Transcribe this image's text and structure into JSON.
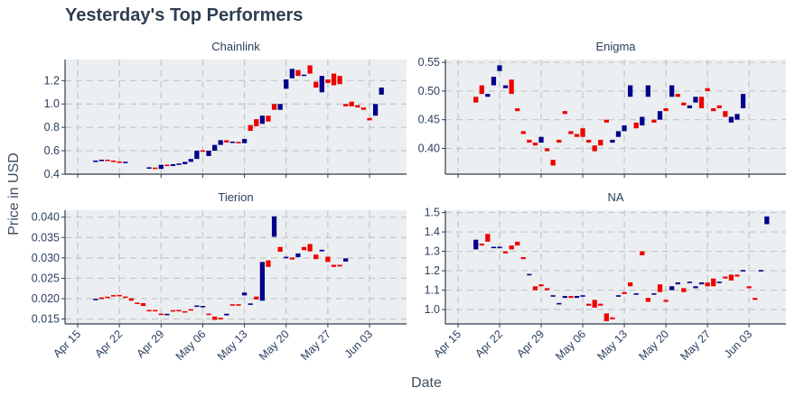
{
  "title": "Yesterday's Top Performers",
  "xlabel": "Date",
  "ylabel": "Price in USD",
  "colors": {
    "up": "#00008b",
    "down": "#ee0000",
    "plot_bg": "#eceff1",
    "grid": "#c3c6c9",
    "axis": "#2f3e50"
  },
  "chart_data": [
    {
      "type": "candlestick",
      "title": "Chainlink",
      "ylim": [
        0.4,
        1.38
      ],
      "yticks": [
        "0.4",
        "0.6",
        "0.8",
        "1.0",
        "1.2"
      ],
      "xticks": [
        "Apr 15",
        "Apr 22",
        "Apr 29",
        "May 06",
        "May 13",
        "May 20",
        "May 27",
        "Jun 03"
      ],
      "start_date": "2018-04-18",
      "candles": [
        [
          0.505,
          0.515
        ],
        [
          0.515,
          0.52
        ],
        [
          0.52,
          0.515
        ],
        [
          0.515,
          0.505
        ],
        [
          0.505,
          0.5
        ],
        [
          0.5,
          0.5
        ],
        null,
        null,
        null,
        [
          0.45,
          0.455
        ],
        [
          0.455,
          0.445
        ],
        [
          0.445,
          0.48
        ],
        [
          0.48,
          0.47
        ],
        [
          0.47,
          0.485
        ],
        [
          0.485,
          0.485
        ],
        [
          0.485,
          0.505
        ],
        [
          0.505,
          0.53
        ],
        [
          0.53,
          0.6
        ],
        [
          0.6,
          0.595
        ],
        [
          0.555,
          0.6
        ],
        [
          0.6,
          0.65
        ],
        [
          0.65,
          0.69
        ],
        [
          0.69,
          0.67
        ],
        [
          0.67,
          0.675
        ],
        [
          0.675,
          0.665
        ],
        [
          0.665,
          0.7
        ],
        [
          0.82,
          0.77
        ],
        [
          0.87,
          0.81
        ],
        [
          0.83,
          0.9
        ],
        [
          0.9,
          0.85
        ],
        [
          1.0,
          0.95
        ],
        [
          0.95,
          1.0
        ],
        [
          1.13,
          1.21
        ],
        [
          1.22,
          1.3
        ],
        [
          1.29,
          1.24
        ],
        [
          1.24,
          1.25
        ],
        [
          1.33,
          1.26
        ],
        [
          1.19,
          1.14
        ],
        [
          1.1,
          1.24
        ],
        [
          1.21,
          1.18
        ],
        [
          1.26,
          1.16
        ],
        [
          1.24,
          1.17
        ],
        [
          1.0,
          0.98
        ],
        [
          1.02,
          0.98
        ],
        [
          0.99,
          0.97
        ],
        [
          0.97,
          0.95
        ],
        [
          0.88,
          0.86
        ],
        [
          0.9,
          1.0
        ],
        [
          1.08,
          1.14
        ]
      ]
    },
    {
      "type": "candlestick",
      "title": "Enigma",
      "ylim": [
        0.355,
        0.555
      ],
      "yticks": [
        "0.40",
        "0.45",
        "0.50",
        "0.55"
      ],
      "xticks": [
        "Apr 15",
        "Apr 22",
        "Apr 29",
        "May 06",
        "May 13",
        "May 20",
        "May 27",
        "Jun 03"
      ],
      "start_date": "2018-04-18",
      "candles": [
        [
          0.49,
          0.48
        ],
        [
          0.51,
          0.495
        ],
        [
          0.49,
          0.495
        ],
        [
          0.51,
          0.525
        ],
        [
          0.535,
          0.545
        ],
        [
          0.505,
          0.51
        ],
        [
          0.52,
          0.495
        ],
        [
          0.47,
          0.465
        ],
        [
          0.43,
          0.425
        ],
        [
          0.415,
          0.41
        ],
        [
          0.41,
          0.405
        ],
        [
          0.41,
          0.42
        ],
        [
          0.4,
          0.395
        ],
        [
          0.38,
          0.37
        ],
        [
          0.415,
          0.41
        ],
        [
          0.465,
          0.46
        ],
        [
          0.43,
          0.425
        ],
        [
          0.425,
          0.42
        ],
        [
          0.435,
          0.42
        ],
        [
          0.415,
          0.41
        ],
        [
          0.405,
          0.395
        ],
        [
          0.415,
          0.405
        ],
        [
          0.45,
          0.445
        ],
        [
          0.41,
          0.415
        ],
        [
          0.42,
          0.43
        ],
        [
          0.43,
          0.44
        ],
        [
          0.49,
          0.51
        ],
        [
          0.445,
          0.435
        ],
        [
          0.44,
          0.455
        ],
        [
          0.49,
          0.51
        ],
        [
          0.45,
          0.445
        ],
        [
          0.45,
          0.465
        ],
        [
          0.47,
          0.465
        ],
        [
          0.49,
          0.51
        ],
        [
          0.495,
          0.49
        ],
        [
          0.48,
          0.475
        ],
        [
          0.47,
          0.475
        ],
        [
          0.48,
          0.49
        ],
        [
          0.49,
          0.47
        ],
        [
          0.505,
          0.5
        ],
        [
          0.47,
          0.465
        ],
        [
          0.475,
          0.47
        ],
        [
          0.465,
          0.455
        ],
        [
          0.445,
          0.455
        ],
        [
          0.45,
          0.46
        ],
        [
          0.47,
          0.495
        ]
      ]
    },
    {
      "type": "candlestick",
      "title": "Tierion",
      "ylim": [
        0.0138,
        0.0417
      ],
      "yticks": [
        "0.015",
        "0.020",
        "0.025",
        "0.030",
        "0.035",
        "0.040"
      ],
      "xticks": [
        "Apr 15",
        "Apr 22",
        "Apr 29",
        "May 06",
        "May 13",
        "May 20",
        "May 27",
        "Jun 03"
      ],
      "start_date": "2018-04-18",
      "candles": [
        [
          0.0198,
          0.0198
        ],
        [
          0.0203,
          0.0199
        ],
        [
          0.0204,
          0.0202
        ],
        [
          0.0208,
          0.0206
        ],
        [
          0.0208,
          0.0207
        ],
        [
          0.0204,
          0.0203
        ],
        [
          0.0201,
          0.0195
        ],
        [
          0.0189,
          0.0188
        ],
        [
          0.0189,
          0.0182
        ],
        [
          0.0171,
          0.017
        ],
        [
          0.0171,
          0.017
        ],
        [
          0.0162,
          0.0161
        ],
        [
          0.0161,
          0.0161
        ],
        [
          0.0171,
          0.0169
        ],
        [
          0.0171,
          0.017
        ],
        [
          0.0168,
          0.0167
        ],
        [
          0.0174,
          0.0171
        ],
        [
          0.0181,
          0.0182
        ],
        [
          0.018,
          0.0181
        ],
        [
          0.0162,
          0.0161
        ],
        [
          0.0156,
          0.0148
        ],
        [
          0.0153,
          0.0149
        ],
        [
          0.0159,
          0.0163
        ],
        [
          0.0185,
          0.0184
        ],
        [
          0.0185,
          0.0184
        ],
        [
          0.0208,
          0.0215
        ],
        [
          0.0185,
          0.0188
        ],
        [
          0.0205,
          0.0198
        ],
        [
          0.0195,
          0.029
        ],
        [
          0.0294,
          0.0278
        ],
        [
          0.0352,
          0.0402
        ],
        [
          0.0327,
          0.0315
        ],
        [
          0.0301,
          0.0301
        ],
        [
          0.0301,
          0.0296
        ],
        [
          0.0302,
          0.0311
        ],
        [
          0.0327,
          0.0319
        ],
        [
          0.0334,
          0.0316
        ],
        [
          0.0308,
          0.0297
        ],
        [
          0.0316,
          0.032
        ],
        [
          0.0303,
          0.029
        ],
        [
          0.0283,
          0.0278
        ],
        [
          0.0283,
          0.0279
        ],
        [
          0.0291,
          0.0299
        ]
      ]
    },
    {
      "type": "candlestick",
      "title": "NA",
      "ylim": [
        0.926,
        1.512
      ],
      "yticks": [
        "1.0",
        "1.1",
        "1.2",
        "1.3",
        "1.4",
        "1.5"
      ],
      "xticks": [
        "Apr 15",
        "Apr 22",
        "Apr 29",
        "May 06",
        "May 13",
        "May 20",
        "May 27",
        "Jun 03"
      ],
      "start_date": "2018-04-18",
      "candles": [
        [
          1.31,
          1.36
        ],
        [
          1.34,
          1.33
        ],
        [
          1.39,
          1.35
        ],
        [
          1.32,
          1.32
        ],
        [
          1.32,
          1.32
        ],
        [
          1.3,
          1.29
        ],
        [
          1.33,
          1.31
        ],
        [
          1.35,
          1.33
        ],
        [
          1.27,
          1.26
        ],
        [
          1.18,
          1.18
        ],
        [
          1.12,
          1.1
        ],
        [
          1.13,
          1.12
        ],
        [
          1.11,
          1.1
        ],
        [
          1.07,
          1.07
        ],
        [
          1.03,
          1.03
        ],
        [
          1.06,
          1.07
        ],
        [
          1.07,
          1.06
        ],
        [
          1.06,
          1.07
        ],
        [
          1.07,
          1.07
        ],
        [
          1.03,
          1.02
        ],
        [
          1.05,
          1.01
        ],
        [
          1.03,
          1.02
        ],
        [
          0.98,
          0.94
        ],
        [
          0.96,
          0.95
        ],
        [
          1.07,
          1.07
        ],
        [
          1.09,
          1.08
        ],
        [
          1.14,
          1.12
        ],
        [
          1.08,
          1.08
        ],
        [
          1.3,
          1.28
        ],
        [
          1.06,
          1.04
        ],
        [
          1.08,
          1.08
        ],
        [
          1.13,
          1.09
        ],
        [
          1.05,
          1.04
        ],
        [
          1.1,
          1.12
        ],
        [
          1.13,
          1.14
        ],
        [
          1.11,
          1.09
        ],
        [
          1.14,
          1.14
        ],
        [
          1.11,
          1.12
        ],
        [
          1.13,
          1.14
        ],
        [
          1.14,
          1.12
        ],
        [
          1.16,
          1.12
        ],
        [
          1.14,
          1.14
        ],
        [
          1.17,
          1.16
        ],
        [
          1.18,
          1.15
        ],
        [
          1.18,
          1.17
        ],
        [
          1.2,
          1.2
        ],
        [
          1.12,
          1.11
        ],
        [
          1.06,
          1.05
        ],
        [
          1.2,
          1.2
        ],
        [
          1.44,
          1.48
        ]
      ]
    }
  ]
}
